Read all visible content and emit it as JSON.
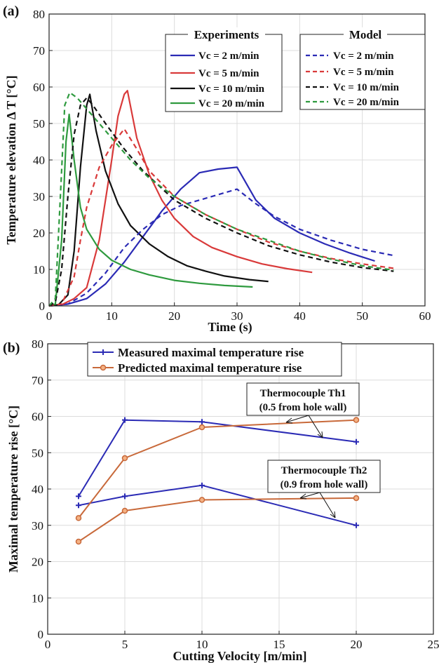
{
  "chart_data": [
    {
      "type": "line",
      "panel_label": "(a)",
      "xlabel": "Time (s)",
      "ylabel": "Temperature elevation Δ T [°C]",
      "xlim": [
        0,
        60
      ],
      "ylim": [
        0,
        80
      ],
      "xticks": [
        0,
        10,
        20,
        30,
        40,
        50,
        60
      ],
      "yticks": [
        0,
        10,
        20,
        30,
        40,
        50,
        60,
        70,
        80
      ],
      "grid": true,
      "legends": [
        {
          "title": "Experiments",
          "placement": "top-center",
          "entries": [
            "Vc = 2 m/min",
            "Vc = 5 m/min",
            "Vc = 10 m/min",
            "Vc = 20 m/min"
          ]
        },
        {
          "title": "Model",
          "placement": "top-right",
          "entries": [
            "Vc = 2 m/min",
            "Vc = 5 m/min",
            "Vc = 10 m/min",
            "Vc = 20 m/min"
          ]
        }
      ],
      "series": [
        {
          "name": "Vc = 2 m/min",
          "group": "Experiments",
          "color": "#2b2bb5",
          "dash": false,
          "x": [
            0,
            3,
            6,
            9,
            12,
            15,
            18,
            21,
            24,
            27,
            30,
            33,
            36,
            40,
            44,
            48,
            52
          ],
          "y": [
            0,
            0.5,
            2,
            6,
            12,
            19,
            26,
            32,
            36.5,
            37.5,
            38,
            29,
            24,
            20,
            17,
            14.5,
            12.3
          ]
        },
        {
          "name": "Vc = 5 m/min",
          "group": "Experiments",
          "color": "#d93a3a",
          "dash": false,
          "x": [
            0,
            2,
            4,
            6,
            8,
            10,
            11,
            12,
            12.5,
            14,
            16,
            18,
            20,
            23,
            26,
            30,
            34,
            38,
            42
          ],
          "y": [
            0,
            0.3,
            2,
            5,
            18,
            40,
            52,
            58,
            59,
            46,
            36,
            29,
            24,
            19,
            16,
            13.5,
            11.5,
            10.2,
            9.2
          ]
        },
        {
          "name": "Vc = 10 m/min",
          "group": "Experiments",
          "color": "#111111",
          "dash": false,
          "x": [
            0,
            1.5,
            3,
            4,
            5,
            6,
            6.5,
            7.5,
            9,
            11,
            13,
            16,
            19,
            22,
            25,
            28,
            32,
            35
          ],
          "y": [
            0,
            0.3,
            3,
            15,
            38,
            55,
            58,
            48,
            37,
            28,
            22,
            17,
            13.5,
            11,
            9.5,
            8.2,
            7.2,
            6.7
          ]
        },
        {
          "name": "Vc = 20 m/min",
          "group": "Experiments",
          "color": "#2e9a3e",
          "dash": false,
          "x": [
            0,
            1,
            2,
            2.7,
            3.2,
            4,
            5,
            6,
            8,
            10,
            13,
            16,
            20,
            24,
            28,
            32.5
          ],
          "y": [
            0,
            0.5,
            18,
            45,
            52.5,
            40,
            27,
            21,
            15.5,
            12.5,
            10,
            8.5,
            7,
            6.2,
            5.6,
            5.2
          ]
        },
        {
          "name": "Vc = 2 m/min",
          "group": "Model",
          "color": "#2b2bb5",
          "dash": true,
          "x": [
            0,
            3,
            6,
            9,
            12,
            15,
            18,
            21,
            24,
            27,
            30,
            33,
            36,
            40,
            45,
            50,
            55
          ],
          "y": [
            0,
            0.5,
            3.5,
            9,
            16,
            21,
            25,
            27.5,
            29,
            30.5,
            32,
            28,
            24.5,
            21,
            18,
            15.5,
            13.8
          ]
        },
        {
          "name": "Vc = 5 m/min",
          "group": "Model",
          "color": "#d93a3a",
          "dash": true,
          "x": [
            0,
            2,
            4,
            5,
            6,
            8,
            10,
            12,
            14,
            16,
            20,
            25,
            30,
            35,
            40,
            45,
            50,
            55
          ],
          "y": [
            0,
            0.5,
            8,
            18,
            27,
            38,
            44,
            48.5,
            43,
            37,
            30,
            25,
            21,
            17.5,
            15,
            13,
            11.5,
            10.3
          ]
        },
        {
          "name": "Vc = 10 m/min",
          "group": "Model",
          "color": "#111111",
          "dash": true,
          "x": [
            0,
            1,
            2,
            3,
            4,
            5,
            6,
            7,
            9,
            12,
            15,
            20,
            25,
            30,
            35,
            40,
            45,
            50,
            55
          ],
          "y": [
            0,
            1,
            10,
            30,
            47,
            55,
            57,
            55,
            50,
            43,
            37,
            29,
            24,
            20,
            16.5,
            14,
            12,
            10.5,
            9.5
          ]
        },
        {
          "name": "Vc = 20 m/min",
          "group": "Model",
          "color": "#2e9a3e",
          "dash": true,
          "x": [
            0,
            1,
            1.8,
            2.5,
            3.3,
            4.5,
            6,
            8,
            10,
            13,
            16,
            20,
            25,
            30,
            35,
            40,
            45,
            50,
            55
          ],
          "y": [
            0,
            2,
            30,
            55,
            58.5,
            57,
            54,
            50,
            46,
            40,
            35,
            30,
            25,
            21,
            18,
            15,
            12.8,
            11,
            9.8
          ]
        }
      ]
    },
    {
      "type": "line",
      "panel_label": "(b)",
      "xlabel": "Cutting Velocity [m/min]",
      "ylabel": "Maximal temperature rise [°C]",
      "xlim": [
        0,
        25
      ],
      "ylim": [
        0,
        80
      ],
      "xticks": [
        0,
        5,
        10,
        15,
        20,
        25
      ],
      "yticks": [
        0,
        10,
        20,
        30,
        40,
        50,
        60,
        70,
        80
      ],
      "grid": true,
      "legend": {
        "placement": "top-left",
        "entries": [
          "Measured maximal temperature rise",
          "Predicted maximal temperature rise"
        ]
      },
      "annotations": [
        {
          "lines": [
            "Thermocouple Th1",
            "(0.5 from hole wall)"
          ]
        },
        {
          "lines": [
            "Thermocouple Th2",
            "(0.9 from hole wall)"
          ]
        }
      ],
      "series": [
        {
          "name": "Measured maximal temperature rise",
          "location": "Th1",
          "color": "#2b2bb5",
          "marker": "plus",
          "x": [
            2,
            5,
            10,
            20
          ],
          "y": [
            38,
            59,
            58.5,
            53
          ]
        },
        {
          "name": "Measured maximal temperature rise",
          "location": "Th2",
          "color": "#2b2bb5",
          "marker": "plus",
          "x": [
            2,
            5,
            10,
            20
          ],
          "y": [
            35.5,
            38,
            41,
            30
          ]
        },
        {
          "name": "Predicted maximal temperature rise",
          "location": "Th1",
          "color": "#c8693a",
          "marker": "circle",
          "x": [
            2,
            5,
            10,
            20
          ],
          "y": [
            32,
            48.5,
            57,
            59
          ]
        },
        {
          "name": "Predicted maximal temperature rise",
          "location": "Th2",
          "color": "#c8693a",
          "marker": "circle",
          "x": [
            2,
            5,
            10,
            20
          ],
          "y": [
            25.5,
            34,
            37,
            37.5
          ]
        }
      ]
    }
  ]
}
